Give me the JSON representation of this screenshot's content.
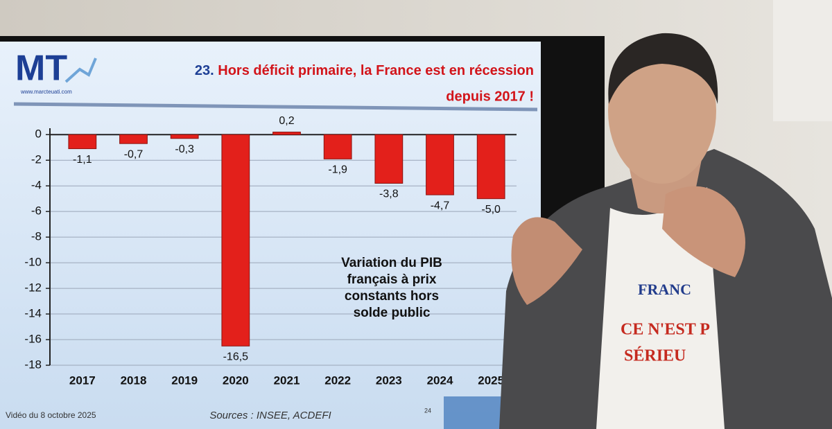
{
  "chart_data": {
    "type": "bar",
    "logo": "MT",
    "logo_url": "www.marcteuati.com",
    "title_number": "23.",
    "title": [
      "Hors déficit primaire, la France est en récession",
      "depuis 2017 !"
    ],
    "annotation": [
      "Variation du PIB",
      "français à prix",
      "constants hors",
      "solde public"
    ],
    "categories": [
      "2017",
      "2018",
      "2019",
      "2020",
      "2021",
      "2022",
      "2023",
      "2024",
      "2025"
    ],
    "values": [
      -1.1,
      -0.7,
      -0.3,
      -16.5,
      0.2,
      -1.9,
      -3.8,
      -4.7,
      -5.0
    ],
    "value_labels": [
      "-1,1",
      "-0,7",
      "-0,3",
      "-16,5",
      "0,2",
      "-1,9",
      "-3,8",
      "-4,7",
      "-5,0"
    ],
    "color": "#e3201b",
    "ylim": [
      -18,
      0.5
    ],
    "yticks": [
      0,
      -2,
      -4,
      -6,
      -8,
      -10,
      -12,
      -14,
      -16,
      -18
    ],
    "grid": true,
    "footer_left": "Vidéo du 8 octobre 2025",
    "sources": "Sources : INSEE, ACDEFI",
    "page_number": "24"
  },
  "shirt_text": [
    "FRANC",
    "CE N'EST P",
    "SÉRIEU"
  ]
}
